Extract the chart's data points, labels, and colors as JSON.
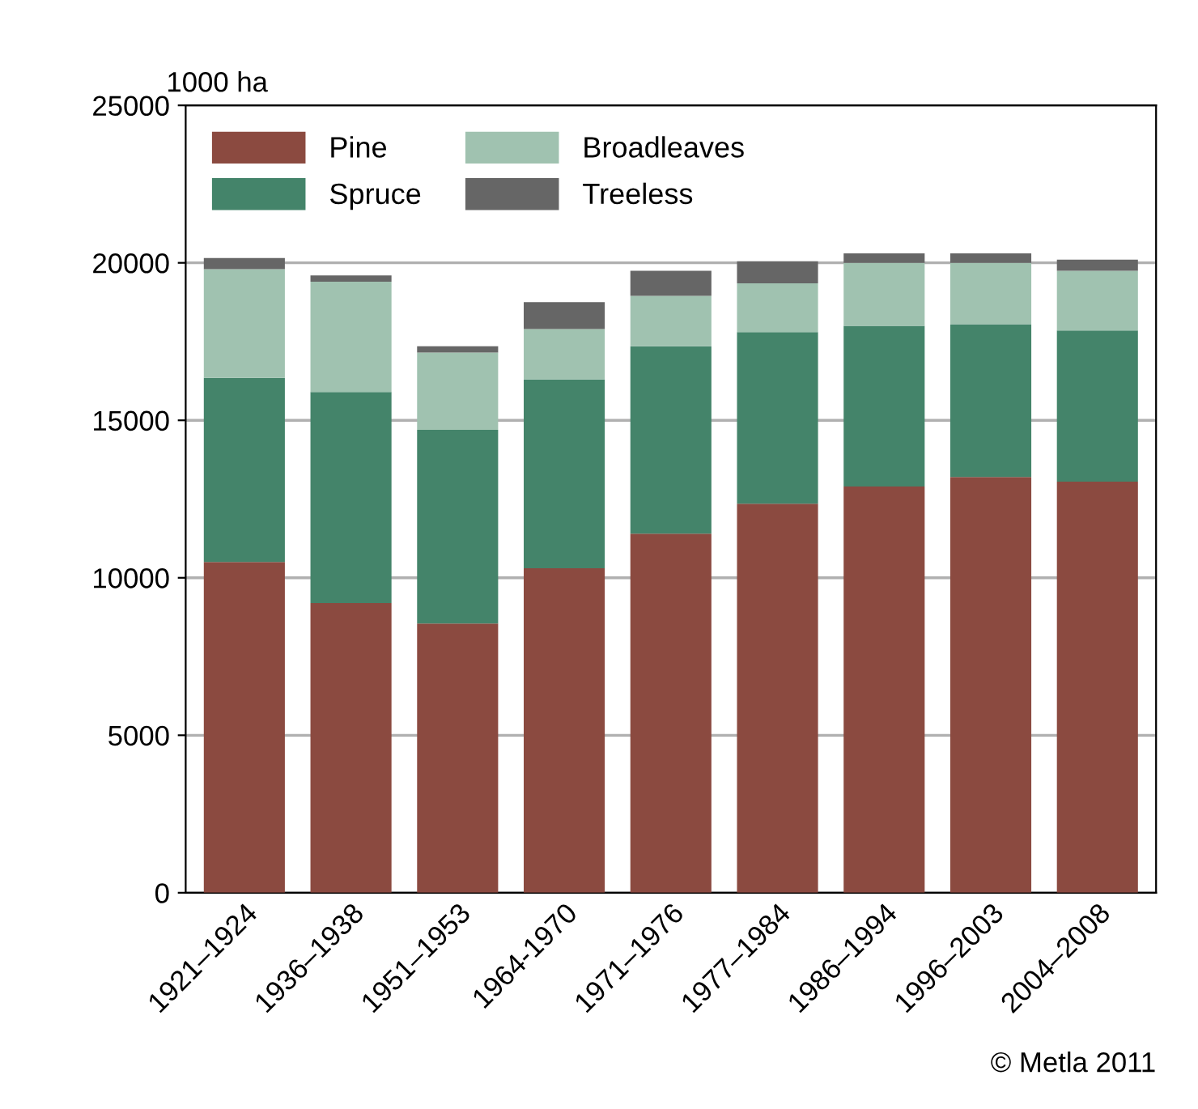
{
  "chart_data": {
    "type": "bar",
    "stacked": true,
    "ylabel": "1000 ha",
    "categories": [
      "1921–1924",
      "1936–1938",
      "1951–1953",
      "1964-1970",
      "1971–1976",
      "1977–1984",
      "1986–1994",
      "1996–2003",
      "2004–2008"
    ],
    "series": [
      {
        "name": "Pine",
        "color": "#8b4a40",
        "values": [
          10500,
          9200,
          8550,
          10300,
          11400,
          12350,
          12900,
          13200,
          13050
        ]
      },
      {
        "name": "Spruce",
        "color": "#44846a",
        "values": [
          5850,
          6700,
          6150,
          6000,
          5950,
          5450,
          5100,
          4850,
          4800
        ]
      },
      {
        "name": "Broadleaves",
        "color": "#a0c2b0",
        "values": [
          3450,
          3500,
          2450,
          1600,
          1600,
          1550,
          2000,
          1950,
          1900
        ]
      },
      {
        "name": "Treeless",
        "color": "#666666",
        "values": [
          350,
          200,
          200,
          850,
          800,
          700,
          300,
          300,
          350
        ]
      }
    ],
    "ylim": [
      0,
      25000
    ],
    "yticks": [
      0,
      5000,
      10000,
      15000,
      20000,
      25000
    ],
    "grid": "y",
    "legend": "top left",
    "annotations": [
      "© Metla 2011"
    ]
  }
}
